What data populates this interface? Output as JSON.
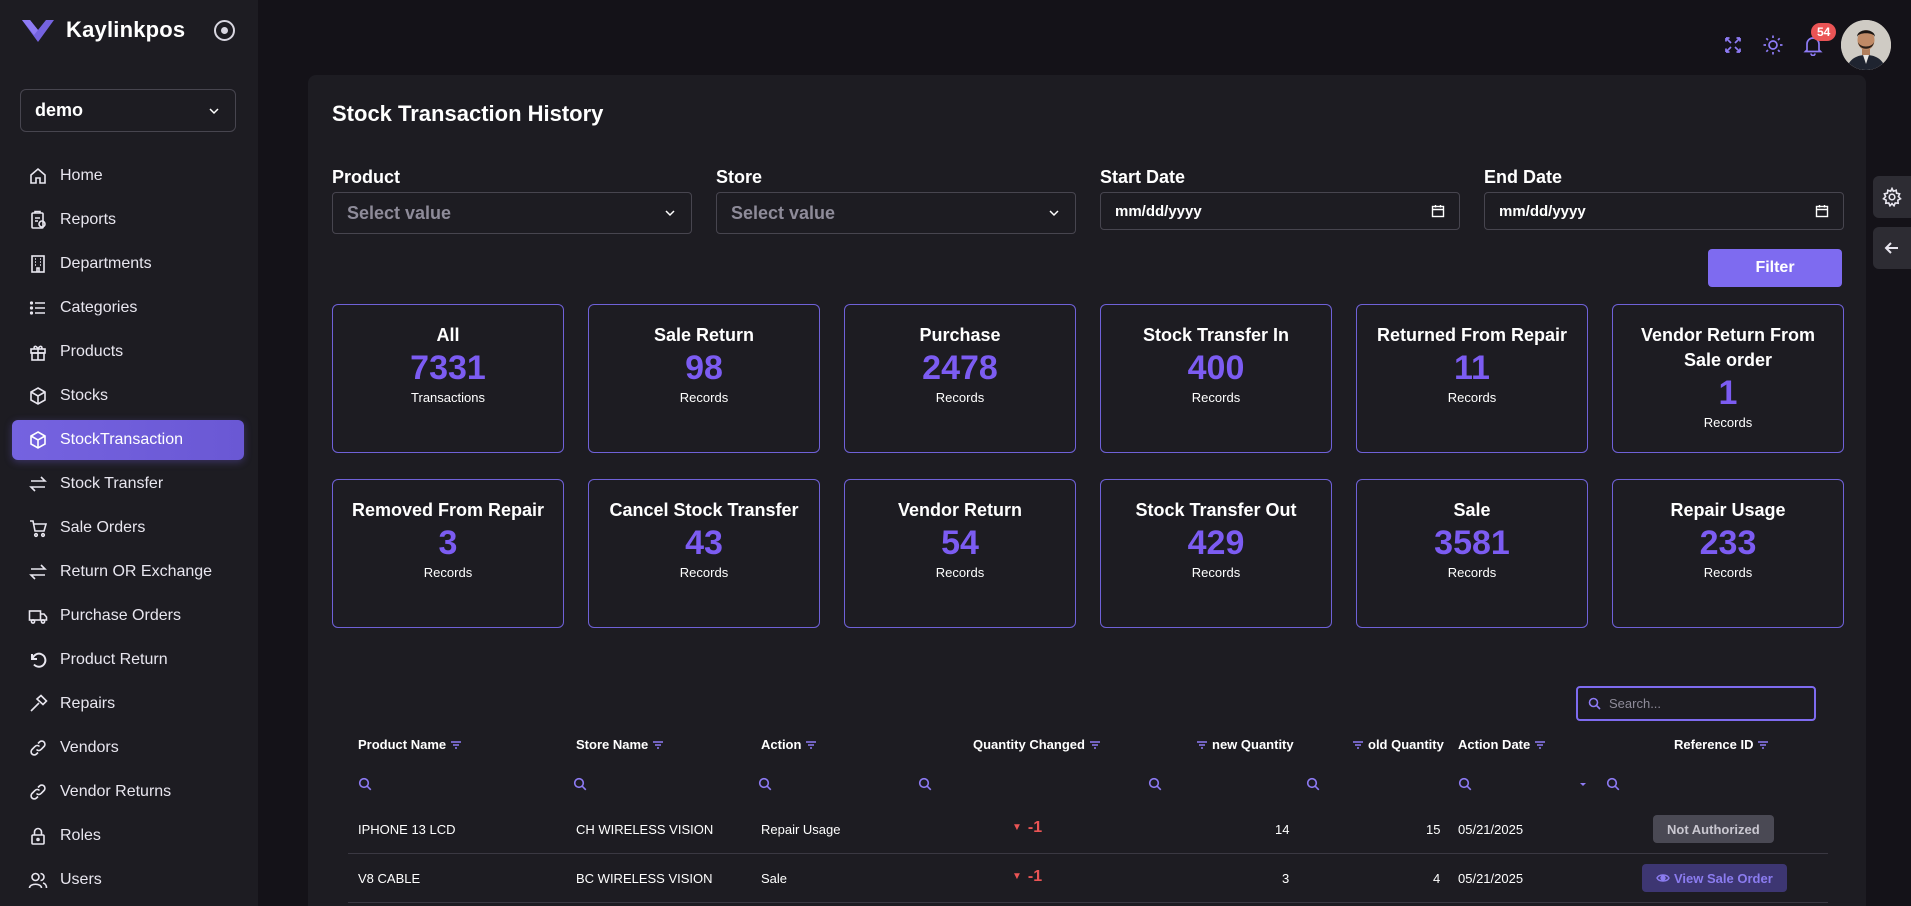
{
  "brand": {
    "name": "Kaylinkpos"
  },
  "org_select": {
    "value": "demo"
  },
  "sidebar": {
    "items": [
      {
        "label": "Home",
        "icon": "home-icon"
      },
      {
        "label": "Reports",
        "icon": "reports-icon"
      },
      {
        "label": "Departments",
        "icon": "departments-icon"
      },
      {
        "label": "Categories",
        "icon": "categories-icon"
      },
      {
        "label": "Products",
        "icon": "gift-icon"
      },
      {
        "label": "Stocks",
        "icon": "box-icon"
      },
      {
        "label": "StockTransaction",
        "icon": "box-icon",
        "active": true
      },
      {
        "label": "Stock Transfer",
        "icon": "transfer-icon"
      },
      {
        "label": "Sale Orders",
        "icon": "cart-icon"
      },
      {
        "label": "Return OR Exchange",
        "icon": "transfer-icon"
      },
      {
        "label": "Purchase Orders",
        "icon": "truck-icon"
      },
      {
        "label": "Product Return",
        "icon": "undo-icon"
      },
      {
        "label": "Repairs",
        "icon": "hammer-icon"
      },
      {
        "label": "Vendors",
        "icon": "link-icon"
      },
      {
        "label": "Vendor Returns",
        "icon": "link-icon"
      },
      {
        "label": "Roles",
        "icon": "lock-icon"
      },
      {
        "label": "Users",
        "icon": "users-icon"
      }
    ]
  },
  "topbar": {
    "notification_count": "54"
  },
  "main": {
    "title": "Stock Transaction History",
    "filters": {
      "product": {
        "label": "Product",
        "placeholder": "Select value"
      },
      "store": {
        "label": "Store",
        "placeholder": "Select value"
      },
      "start_date": {
        "label": "Start Date",
        "placeholder": "mm/dd/yyyy"
      },
      "end_date": {
        "label": "End Date",
        "placeholder": "mm/dd/yyyy"
      },
      "filter_button": "Filter"
    },
    "stats": [
      {
        "title": "All",
        "value": "7331",
        "unit": "Transactions"
      },
      {
        "title": "Sale Return",
        "value": "98",
        "unit": "Records"
      },
      {
        "title": "Purchase",
        "value": "2478",
        "unit": "Records"
      },
      {
        "title": "Stock Transfer In",
        "value": "400",
        "unit": "Records"
      },
      {
        "title": "Returned From Repair",
        "value": "11",
        "unit": "Records"
      },
      {
        "title": "Vendor Return From Sale order",
        "value": "1",
        "unit": "Records"
      },
      {
        "title": "Removed From Repair",
        "value": "3",
        "unit": "Records"
      },
      {
        "title": "Cancel Stock Transfer",
        "value": "43",
        "unit": "Records"
      },
      {
        "title": "Vendor Return",
        "value": "54",
        "unit": "Records"
      },
      {
        "title": "Stock Transfer Out",
        "value": "429",
        "unit": "Records"
      },
      {
        "title": "Sale",
        "value": "3581",
        "unit": "Records"
      },
      {
        "title": "Repair Usage",
        "value": "233",
        "unit": "Records"
      }
    ],
    "search": {
      "placeholder": "Search..."
    },
    "table": {
      "columns": [
        "Product Name",
        "Store Name",
        "Action",
        "Quantity Changed",
        "new Quantity",
        "old Quantity",
        "Action Date",
        "Reference ID"
      ],
      "rows": [
        {
          "product": "IPHONE 13 LCD",
          "store": "CH WIRELESS VISION",
          "action": "Repair Usage",
          "qty_changed": "-1",
          "new_qty": "14",
          "old_qty": "15",
          "date": "05/21/2025",
          "reference": "Not Authorized"
        },
        {
          "product": "V8 CABLE",
          "store": "BC WIRELESS VISION",
          "action": "Sale",
          "qty_changed": "-1",
          "new_qty": "3",
          "old_qty": "4",
          "date": "05/21/2025",
          "reference": "View Sale Order"
        }
      ]
    }
  },
  "colors": {
    "accent": "#7e6bf0",
    "value_purple": "#7c5cf2",
    "negative": "#ea5455",
    "bg": "#141218",
    "panel": "#1d1c22"
  }
}
